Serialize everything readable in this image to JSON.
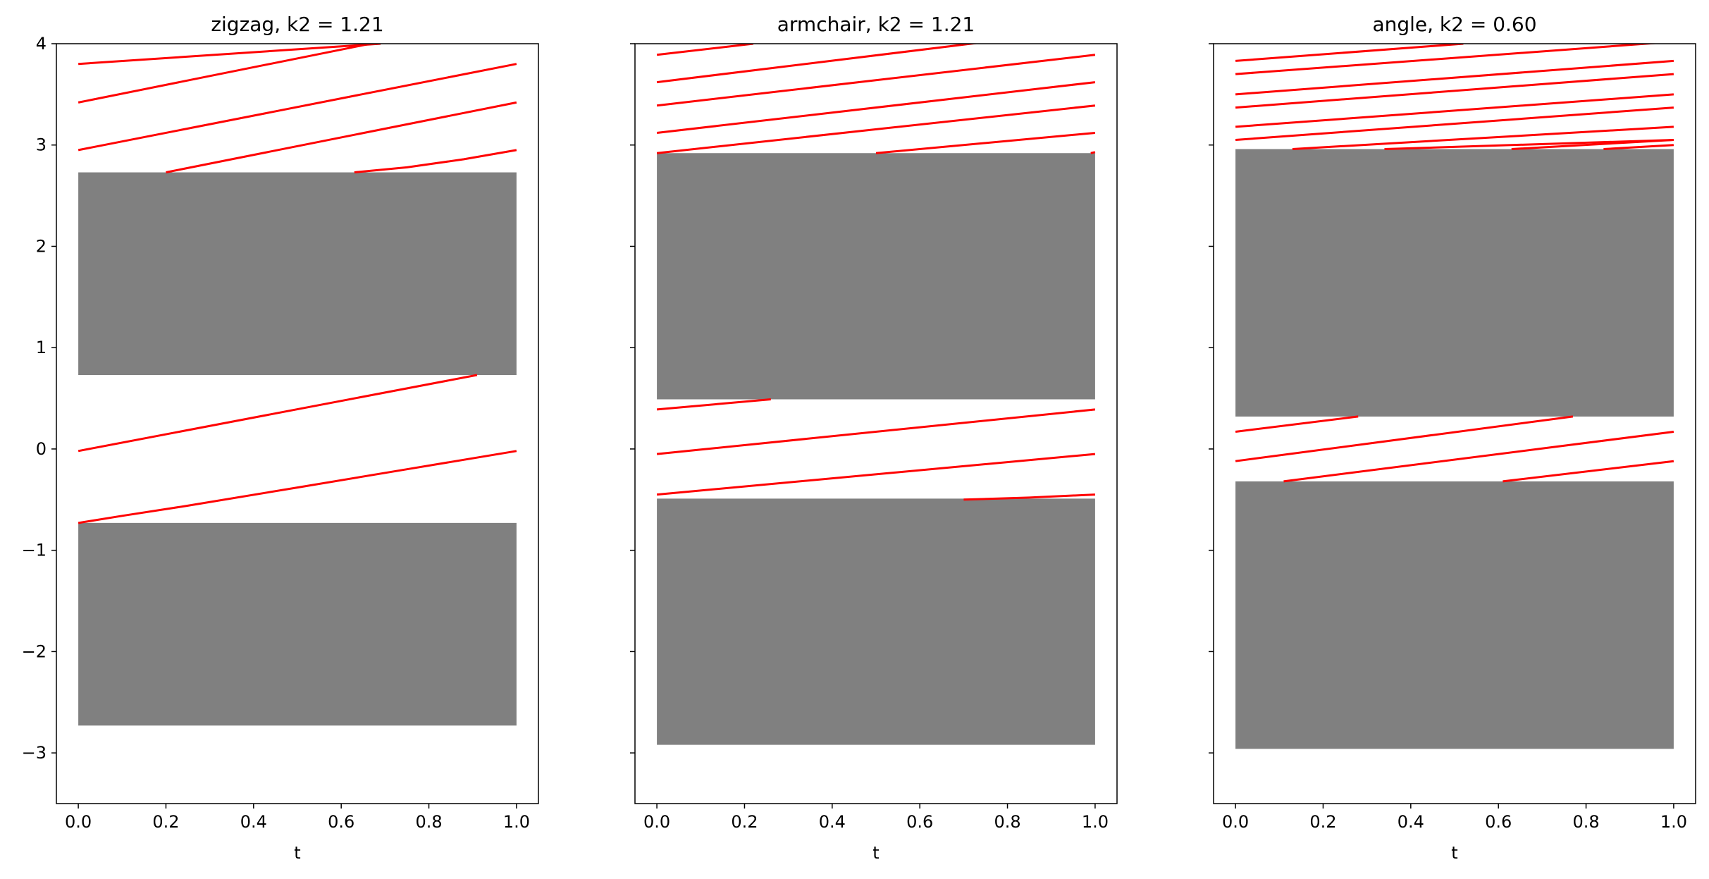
{
  "chart_data": [
    {
      "type": "line",
      "title": "zigzag, k2 = 1.21",
      "xlabel": "t",
      "ylabel": "",
      "xlim": [
        -0.05,
        1.05
      ],
      "ylim": [
        -3.5,
        4
      ],
      "xticks": [
        "0.0",
        "0.2",
        "0.4",
        "0.6",
        "0.8",
        "1.0"
      ],
      "yticks": [
        "−3",
        "−2",
        "−1",
        "0",
        "1",
        "2",
        "3",
        "4"
      ],
      "show_ytick_labels": true,
      "grid": false,
      "gap_color": "#808080",
      "line_color": "#ff0000",
      "gaps": [
        {
          "t_range": [
            0,
            1
          ],
          "y_range": [
            0.73,
            2.73
          ]
        },
        {
          "t_range": [
            0,
            1
          ],
          "y_range": [
            -2.73,
            -0.73
          ]
        }
      ],
      "series": [
        {
          "x": [
            0,
            0.69
          ],
          "y": [
            3.8,
            4.0
          ]
        },
        {
          "x": [
            0,
            1
          ],
          "y": [
            3.42,
            4.29
          ]
        },
        {
          "x": [
            0,
            1
          ],
          "y": [
            2.95,
            3.8
          ]
        },
        {
          "x": [
            0.2,
            1
          ],
          "y": [
            2.73,
            3.42
          ]
        },
        {
          "x": [
            0.63,
            0.75,
            0.88,
            1.0
          ],
          "y": [
            2.73,
            2.78,
            2.86,
            2.95
          ]
        },
        {
          "x": [
            0,
            0.91
          ],
          "y": [
            -0.02,
            0.73
          ]
        },
        {
          "x": [
            0,
            0.1,
            0.25,
            0.5,
            0.75,
            1.0
          ],
          "y": [
            -0.73,
            -0.66,
            -0.56,
            -0.38,
            -0.2,
            -0.02
          ]
        }
      ]
    },
    {
      "type": "line",
      "title": "armchair, k2 = 1.21",
      "xlabel": "t",
      "ylabel": "",
      "xlim": [
        -0.05,
        1.05
      ],
      "ylim": [
        -3.5,
        4
      ],
      "xticks": [
        "0.0",
        "0.2",
        "0.4",
        "0.6",
        "0.8",
        "1.0"
      ],
      "yticks": [
        "−3",
        "−2",
        "−1",
        "0",
        "1",
        "2",
        "3",
        "4"
      ],
      "show_ytick_labels": false,
      "grid": false,
      "gap_color": "#808080",
      "line_color": "#ff0000",
      "gaps": [
        {
          "t_range": [
            0,
            1
          ],
          "y_range": [
            0.49,
            2.92
          ]
        },
        {
          "t_range": [
            0,
            1
          ],
          "y_range": [
            -2.92,
            -0.49
          ]
        }
      ],
      "series": [
        {
          "x": [
            0,
            0.22
          ],
          "y": [
            3.89,
            4.0
          ]
        },
        {
          "x": [
            0,
            1
          ],
          "y": [
            3.62,
            4.15
          ]
        },
        {
          "x": [
            0,
            1
          ],
          "y": [
            3.39,
            3.89
          ]
        },
        {
          "x": [
            0,
            1
          ],
          "y": [
            3.12,
            3.62
          ]
        },
        {
          "x": [
            0,
            1
          ],
          "y": [
            2.92,
            3.39
          ]
        },
        {
          "x": [
            0.5,
            1
          ],
          "y": [
            2.92,
            3.12
          ]
        },
        {
          "x": [
            0.99,
            1
          ],
          "y": [
            2.92,
            2.93
          ]
        },
        {
          "x": [
            0,
            0.26
          ],
          "y": [
            0.39,
            0.49
          ]
        },
        {
          "x": [
            0,
            1
          ],
          "y": [
            -0.05,
            0.39
          ]
        },
        {
          "x": [
            0,
            1
          ],
          "y": [
            -0.45,
            -0.05
          ]
        },
        {
          "x": [
            0.7,
            0.85,
            1.0
          ],
          "y": [
            -0.5,
            -0.48,
            -0.45
          ]
        }
      ]
    },
    {
      "type": "line",
      "title": "angle, k2 = 0.60",
      "xlabel": "t",
      "ylabel": "",
      "xlim": [
        -0.05,
        1.05
      ],
      "ylim": [
        -3.5,
        4
      ],
      "xticks": [
        "0.0",
        "0.2",
        "0.4",
        "0.6",
        "0.8",
        "1.0"
      ],
      "yticks": [
        "−3",
        "−2",
        "−1",
        "0",
        "1",
        "2",
        "3",
        "4"
      ],
      "show_ytick_labels": false,
      "grid": false,
      "gap_color": "#808080",
      "line_color": "#ff0000",
      "gaps": [
        {
          "t_range": [
            0,
            1
          ],
          "y_range": [
            0.32,
            2.96
          ]
        },
        {
          "t_range": [
            0,
            1
          ],
          "y_range": [
            -2.96,
            -0.32
          ]
        }
      ],
      "series": [
        {
          "x": [
            0,
            0.52
          ],
          "y": [
            3.83,
            4.0
          ]
        },
        {
          "x": [
            0,
            1
          ],
          "y": [
            3.7,
            4.02
          ]
        },
        {
          "x": [
            0,
            1
          ],
          "y": [
            3.5,
            3.83
          ]
        },
        {
          "x": [
            0,
            1
          ],
          "y": [
            3.37,
            3.7
          ]
        },
        {
          "x": [
            0,
            1
          ],
          "y": [
            3.18,
            3.5
          ]
        },
        {
          "x": [
            0,
            1
          ],
          "y": [
            3.05,
            3.37
          ]
        },
        {
          "x": [
            0.13,
            1
          ],
          "y": [
            2.96,
            3.18
          ]
        },
        {
          "x": [
            0.34,
            1
          ],
          "y": [
            2.96,
            3.05
          ]
        },
        {
          "x": [
            0.63,
            1
          ],
          "y": [
            2.96,
            3.05
          ]
        },
        {
          "x": [
            0.84,
            1
          ],
          "y": [
            2.96,
            3.0
          ]
        },
        {
          "x": [
            0,
            0.28
          ],
          "y": [
            0.17,
            0.32
          ]
        },
        {
          "x": [
            0,
            0.77
          ],
          "y": [
            -0.12,
            0.32
          ]
        },
        {
          "x": [
            0.11,
            1
          ],
          "y": [
            -0.32,
            0.17
          ]
        },
        {
          "x": [
            0.61,
            1
          ],
          "y": [
            -0.32,
            -0.12
          ]
        }
      ]
    }
  ]
}
